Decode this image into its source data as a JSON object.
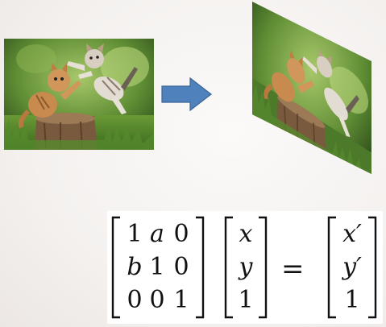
{
  "transform_matrix": {
    "rows": [
      [
        "1",
        "a",
        "0"
      ],
      [
        "b",
        "1",
        "0"
      ],
      [
        "0",
        "0",
        "1"
      ]
    ]
  },
  "input_vector": [
    "x",
    "y",
    "1"
  ],
  "equals_sign": "=",
  "output_vector": [
    "x′",
    "y′",
    "1"
  ],
  "colors": {
    "arrow_fill": "#4f81bd",
    "arrow_stroke": "#3a6595",
    "grass": "#4d7a2a",
    "kitten_orange": "#c98a4e"
  },
  "icons": {
    "arrow": "right-arrow-icon"
  }
}
